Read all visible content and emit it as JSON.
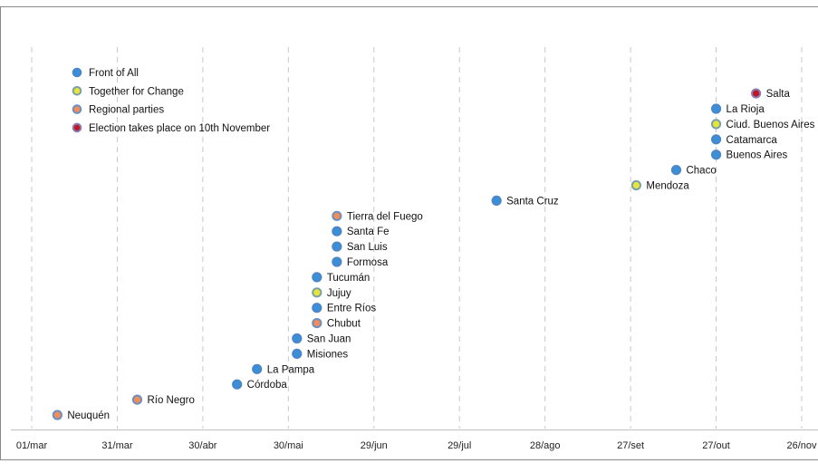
{
  "chart_data": {
    "type": "scatter",
    "title": "",
    "xlabel": "",
    "ylabel": "",
    "x_ticks": [
      "01/mar",
      "31/mar",
      "30/abr",
      "30/mai",
      "29/jun",
      "29/jul",
      "28/ago",
      "27/set",
      "27/out",
      "26/nov"
    ],
    "xlim": [
      "2019-03-01",
      "2019-11-26"
    ],
    "grid": "vertical dashed",
    "legend_position": "top-left",
    "series": [
      {
        "name": "Front of All",
        "fill": "#3a8fd9",
        "ring": "#4a86c8"
      },
      {
        "name": "Together for Change",
        "fill": "#e6e63a",
        "ring": "#7aa0a8"
      },
      {
        "name": "Regional parties",
        "fill": "#f08d5a",
        "ring": "#6c8fc0"
      },
      {
        "name": "Election takes place on 10th November",
        "fill": "#c0182a",
        "ring": "#8a7fb0"
      }
    ],
    "points": [
      {
        "label": "Neuquén",
        "date": "2019-03-10",
        "series": 2
      },
      {
        "label": "Río Negro",
        "date": "2019-04-07",
        "series": 2
      },
      {
        "label": "Córdoba",
        "date": "2019-05-12",
        "series": 0
      },
      {
        "label": "La Pampa",
        "date": "2019-05-19",
        "series": 0
      },
      {
        "label": "Misiones",
        "date": "2019-06-02",
        "series": 0
      },
      {
        "label": "San Juan",
        "date": "2019-06-02",
        "series": 0
      },
      {
        "label": "Chubut",
        "date": "2019-06-09",
        "series": 2
      },
      {
        "label": "Entre Ríos",
        "date": "2019-06-09",
        "series": 0
      },
      {
        "label": "Jujuy",
        "date": "2019-06-09",
        "series": 1
      },
      {
        "label": "Tucumán",
        "date": "2019-06-09",
        "series": 0
      },
      {
        "label": "Formosa",
        "date": "2019-06-16",
        "series": 0
      },
      {
        "label": "San Luis",
        "date": "2019-06-16",
        "series": 0
      },
      {
        "label": "Santa Fe",
        "date": "2019-06-16",
        "series": 0
      },
      {
        "label": "Tierra del Fuego",
        "date": "2019-06-16",
        "series": 2
      },
      {
        "label": "Santa Cruz",
        "date": "2019-08-11",
        "series": 0
      },
      {
        "label": "Mendoza",
        "date": "2019-09-29",
        "series": 1
      },
      {
        "label": "Chaco",
        "date": "2019-10-13",
        "series": 0
      },
      {
        "label": "Buenos Aires",
        "date": "2019-10-27",
        "series": 0
      },
      {
        "label": "Catamarca",
        "date": "2019-10-27",
        "series": 0
      },
      {
        "label": "Ciud. Buenos Aires",
        "date": "2019-10-27",
        "series": 1
      },
      {
        "label": "La Rioja",
        "date": "2019-10-27",
        "series": 0
      },
      {
        "label": "Salta",
        "date": "2019-11-10",
        "series": 3
      }
    ]
  }
}
